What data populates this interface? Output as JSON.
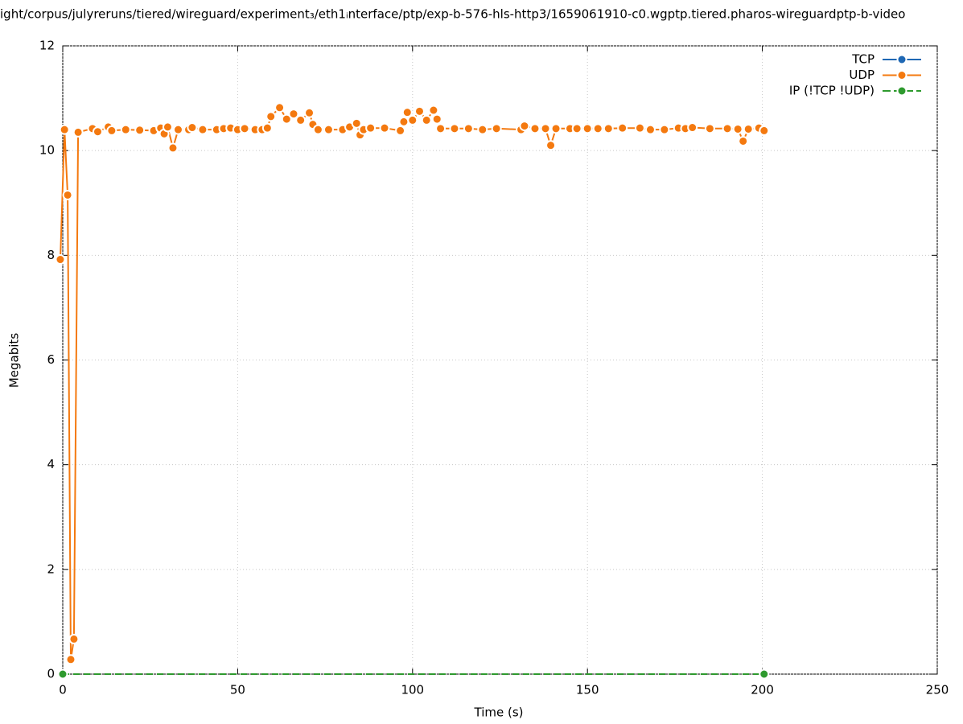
{
  "chart_data": {
    "type": "line",
    "title": "ight/corpus/julyreruns/tiered/wireguard/experiment₃/eth1ᵢnterface/ptp/exp-b-576-hls-http3/1659061910-c0.wgptp.tiered.pharos-wireguardptp-b-video",
    "x_label": "Time (s)",
    "y_label": "Megabits",
    "xlim": [
      0,
      250
    ],
    "xticks": [
      0,
      50,
      100,
      150,
      200,
      250
    ],
    "ylim": [
      0,
      12
    ],
    "yticks": [
      0,
      2,
      4,
      6,
      8,
      10,
      12
    ],
    "grid": true,
    "legend": "top-right",
    "series": [
      {
        "name": "TCP",
        "color": "#1f68b4",
        "dashed": false,
        "x": [],
        "values": []
      },
      {
        "name": "UDP",
        "color": "#f4790f",
        "dashed": false,
        "x": [
          -0.7,
          0.5,
          1.4,
          2.3,
          3.2,
          4.4,
          8.5,
          10,
          13,
          14,
          18,
          22,
          26,
          28,
          29,
          30,
          31.5,
          33,
          36,
          37,
          40,
          44,
          46,
          48,
          50,
          52,
          55,
          57,
          58.5,
          59.5,
          62,
          64,
          66,
          68,
          70.5,
          71.5,
          73,
          76,
          80,
          82,
          84,
          85,
          86,
          88,
          92,
          96.5,
          97.5,
          98.5,
          100,
          102,
          104,
          106,
          107,
          108,
          112,
          116,
          120,
          124,
          131,
          132,
          135,
          138,
          139.5,
          141,
          145,
          147,
          150,
          153,
          156,
          160,
          165,
          168,
          172,
          176,
          178,
          180,
          185,
          190,
          193,
          194.5,
          196,
          199,
          200.5
        ],
        "values": [
          7.92,
          10.4,
          9.15,
          0.28,
          0.67,
          10.35,
          10.42,
          10.36,
          10.45,
          10.38,
          10.4,
          10.39,
          10.38,
          10.43,
          10.32,
          10.45,
          10.05,
          10.4,
          10.4,
          10.44,
          10.4,
          10.4,
          10.42,
          10.43,
          10.4,
          10.42,
          10.4,
          10.4,
          10.43,
          10.65,
          10.82,
          10.6,
          10.7,
          10.58,
          10.72,
          10.5,
          10.4,
          10.4,
          10.4,
          10.45,
          10.52,
          10.3,
          10.4,
          10.43,
          10.43,
          10.38,
          10.55,
          10.73,
          10.58,
          10.75,
          10.58,
          10.77,
          10.6,
          10.42,
          10.42,
          10.42,
          10.4,
          10.42,
          10.4,
          10.47,
          10.42,
          10.42,
          10.1,
          10.42,
          10.42,
          10.42,
          10.42,
          10.42,
          10.42,
          10.43,
          10.43,
          10.4,
          10.4,
          10.43,
          10.42,
          10.44,
          10.42,
          10.42,
          10.41,
          10.18,
          10.41,
          10.43,
          10.38
        ]
      },
      {
        "name": "IP (!TCP  !UDP)",
        "color": "#2e9a2e",
        "dashed": true,
        "x": [
          0,
          200.5
        ],
        "values": [
          0,
          0
        ]
      }
    ]
  }
}
